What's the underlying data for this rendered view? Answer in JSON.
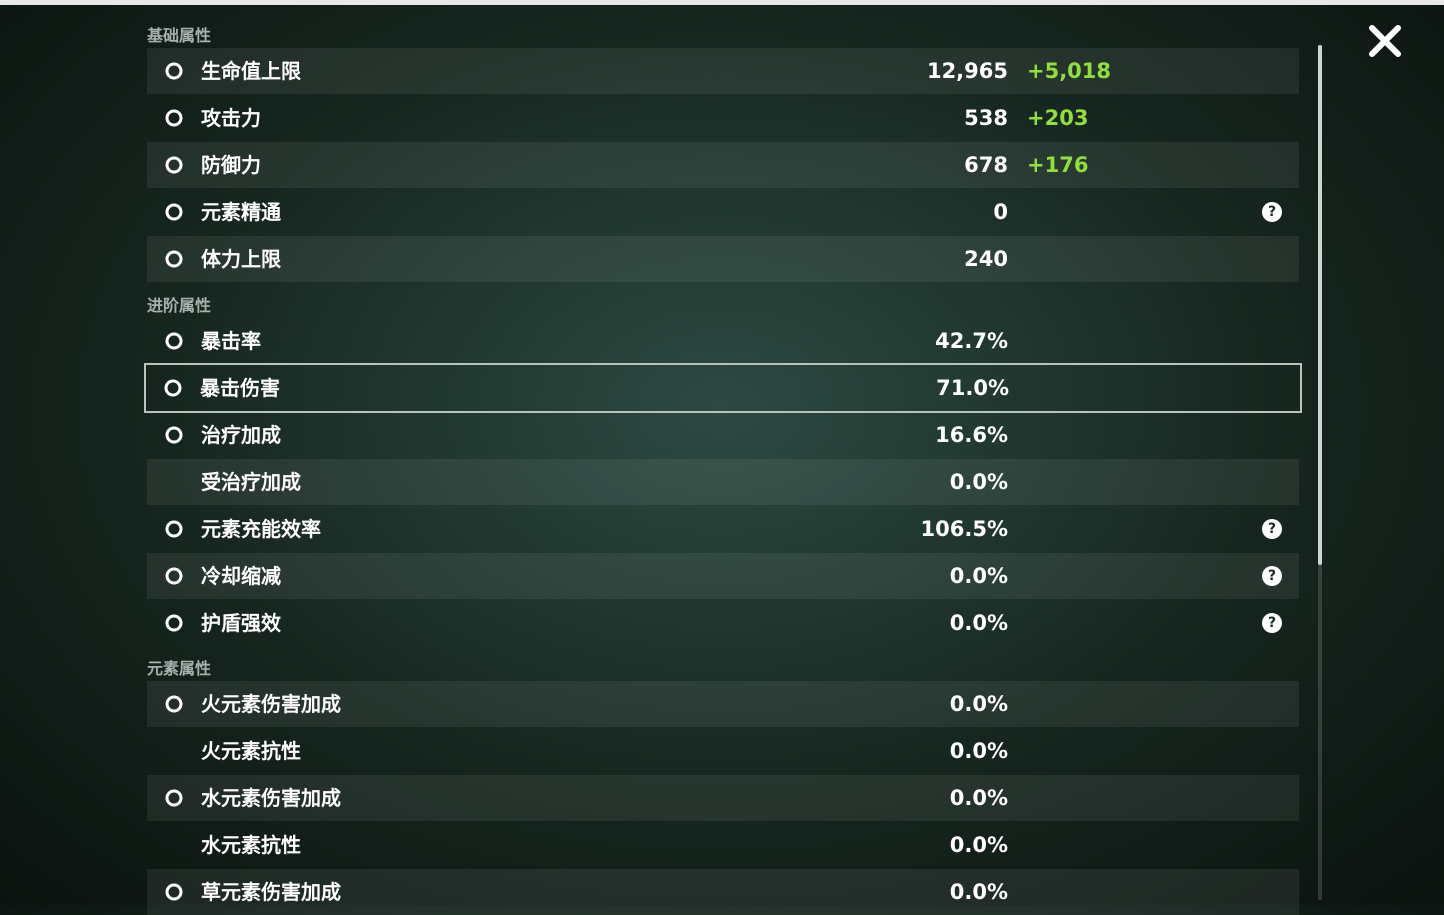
{
  "sections": [
    {
      "title": "基础属性",
      "rows": [
        {
          "label": "生命值上限",
          "value": "12,965",
          "bonus": "+5,018"
        },
        {
          "label": "攻击力",
          "value": "538",
          "bonus": "+203"
        },
        {
          "label": "防御力",
          "value": "678",
          "bonus": "+176"
        },
        {
          "label": "元素精通",
          "value": "0",
          "help": "?"
        },
        {
          "label": "体力上限",
          "value": "240"
        }
      ]
    },
    {
      "title": "进阶属性",
      "rows": [
        {
          "label": "暴击率",
          "value": "42.7%"
        },
        {
          "label": "暴击伤害",
          "value": "71.0%"
        },
        {
          "label": "治疗加成",
          "value": "16.6%"
        },
        {
          "label": "受治疗加成",
          "value": "0.0%"
        },
        {
          "label": "元素充能效率",
          "value": "106.5%",
          "help": "?"
        },
        {
          "label": "冷却缩减",
          "value": "0.0%",
          "help": "?"
        },
        {
          "label": "护盾强效",
          "value": "0.0%",
          "help": "?"
        }
      ]
    },
    {
      "title": "元素属性",
      "rows": [
        {
          "label": "火元素伤害加成",
          "value": "0.0%"
        },
        {
          "label": "火元素抗性",
          "value": "0.0%"
        },
        {
          "label": "水元素伤害加成",
          "value": "0.0%"
        },
        {
          "label": "水元素抗性",
          "value": "0.0%"
        },
        {
          "label": "草元素伤害加成",
          "value": "0.0%"
        }
      ]
    }
  ]
}
